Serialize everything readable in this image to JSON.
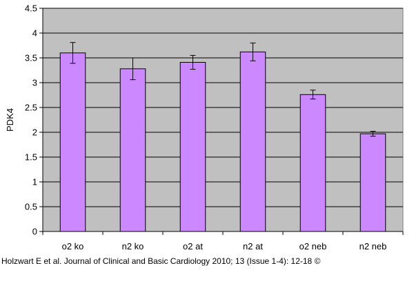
{
  "chart_data": {
    "type": "bar",
    "title": "",
    "xlabel": "",
    "ylabel": "PDK4",
    "categories": [
      "o2 ko",
      "n2 ko",
      "o2 at",
      "n2 at",
      "o2 neb",
      "n2 neb"
    ],
    "values": [
      3.6,
      3.28,
      3.41,
      3.62,
      2.76,
      1.97
    ],
    "error_bars": [
      0.21,
      0.22,
      0.14,
      0.18,
      0.09,
      0.05
    ],
    "ylim": [
      0,
      4.5
    ],
    "yticks": [
      "0",
      "0.5",
      "1",
      "1.5",
      "2",
      "2.5",
      "3",
      "3.5",
      "4",
      "4.5"
    ],
    "grid": true,
    "legend": "none",
    "colors": {
      "bar_fill": "#cc88ff",
      "bar_stroke": "#000000",
      "plot_background": "#c0c0c0",
      "gridline": "#000000"
    }
  },
  "citation": "Holzwart E et al. Journal of Clinical and Basic Cardiology 2010; 13 (Issue 1-4): 12-18 ©"
}
